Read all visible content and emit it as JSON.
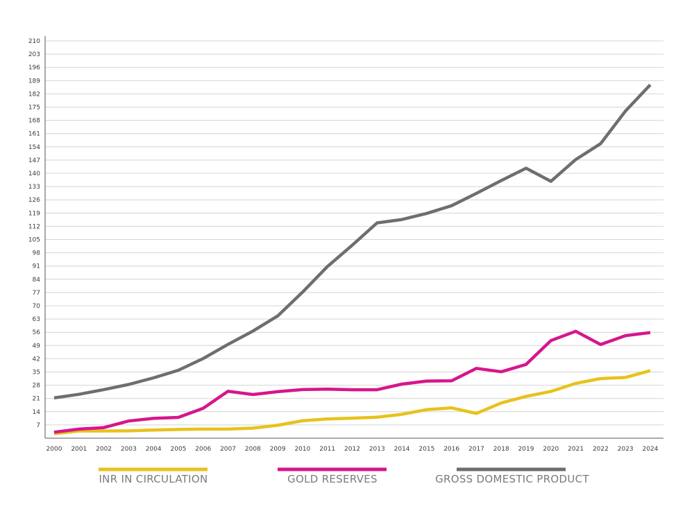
{
  "chart_data": {
    "type": "line",
    "title": "",
    "xlabel": "",
    "ylabel": "",
    "grid": true,
    "legend_position": "bottom",
    "ylim": [
      0,
      210
    ],
    "yticks": [
      7,
      14,
      21,
      28,
      35,
      42,
      49,
      56,
      63,
      70,
      77,
      84,
      91,
      98,
      105,
      112,
      119,
      126,
      133,
      140,
      147,
      154,
      161,
      168,
      175,
      182,
      189,
      196,
      203,
      210
    ],
    "x": [
      "2000",
      "2001",
      "2002",
      "2003",
      "2004",
      "2005",
      "2006",
      "2007",
      "2008",
      "2009",
      "2010",
      "2011",
      "2012",
      "2013",
      "2014",
      "2015",
      "2016",
      "2017",
      "2018",
      "2019",
      "2020",
      "2021",
      "2022",
      "2023",
      "2024"
    ],
    "series": [
      {
        "name": "INR IN CIRCULATION",
        "color": "#e8c21c",
        "values": [
          2.4,
          3.8,
          3.8,
          3.9,
          4.3,
          4.6,
          4.8,
          4.8,
          5.3,
          6.8,
          9.2,
          10.2,
          10.6,
          11.1,
          12.6,
          15.1,
          16.0,
          13.1,
          18.6,
          22.1,
          24.7,
          29.0,
          31.5,
          32.1,
          35.7
        ]
      },
      {
        "name": "GOLD RESERVES",
        "color": "#d6168c",
        "values": [
          3.2,
          4.8,
          5.6,
          9.1,
          10.5,
          11.0,
          15.8,
          24.8,
          23.1,
          24.6,
          25.7,
          25.9,
          25.6,
          25.6,
          28.6,
          30.2,
          30.3,
          36.9,
          35.1,
          39.0,
          51.6,
          56.5,
          49.5,
          54.2,
          55.8
        ]
      },
      {
        "name": "GROSS DOMESTIC PRODUCT",
        "color": "#6e6e70",
        "values": [
          21.3,
          23.2,
          25.7,
          28.4,
          31.9,
          35.9,
          42.1,
          49.6,
          56.6,
          64.6,
          77.2,
          90.7,
          102.0,
          113.8,
          115.6,
          118.8,
          122.9,
          129.4,
          136.2,
          142.7,
          135.8,
          147.3,
          155.7,
          172.9,
          186.8
        ]
      }
    ]
  }
}
